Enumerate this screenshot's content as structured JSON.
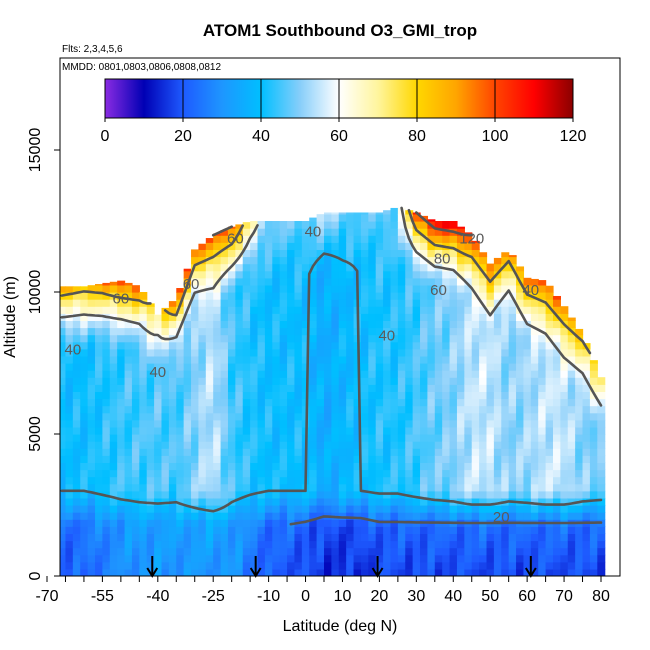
{
  "chart_data": {
    "type": "heatmap",
    "title": "ATOM1 Southbound O3_GMI_trop",
    "subtitle_flights": "Flts: 2,3,4,5,6",
    "subtitle_dates": "MMDD: 0801,0803,0806,0808,0812",
    "xlabel": "Latitude (deg N)",
    "ylabel": "Altitude (m)",
    "xlim": [
      -70,
      80
    ],
    "ylim": [
      0,
      17500
    ],
    "x_ticks": [
      -70,
      -55,
      -40,
      -25,
      -10,
      0,
      10,
      20,
      30,
      40,
      50,
      60,
      70,
      80
    ],
    "y_ticks": [
      0,
      5000,
      10000,
      15000
    ],
    "colorbar": {
      "min": 0,
      "max": 120,
      "ticks": [
        0,
        20,
        40,
        60,
        80,
        100,
        120
      ],
      "colors": [
        "#8a2be2",
        "#0000b4",
        "#1e5aff",
        "#1e96ff",
        "#00bfff",
        "#87cefa",
        "#ffffff",
        "#fff59d",
        "#ffd700",
        "#ffa500",
        "#ff4500",
        "#ff0000",
        "#8b0000"
      ]
    },
    "contour_levels": [
      20,
      40,
      60,
      80,
      100,
      120
    ],
    "contour_labels": [
      {
        "text": "20",
        "lat": 53,
        "alt": 1900
      },
      {
        "text": "40",
        "lat": 2,
        "alt": 11950
      },
      {
        "text": "40",
        "lat": 22,
        "alt": 8300
      },
      {
        "text": "40",
        "lat": -40,
        "alt": 7000
      },
      {
        "text": "40",
        "lat": -63,
        "alt": 7800
      },
      {
        "text": "40",
        "lat": 61,
        "alt": 9900
      },
      {
        "text": "60",
        "lat": -50,
        "alt": 9600
      },
      {
        "text": "60",
        "lat": 36,
        "alt": 9900
      },
      {
        "text": "60",
        "lat": -31,
        "alt": 10100
      },
      {
        "text": "60",
        "lat": -19,
        "alt": 11700
      },
      {
        "text": "80",
        "lat": 37,
        "alt": 11000
      },
      {
        "text": "120",
        "lat": 45,
        "alt": 11700
      }
    ],
    "flight_markers_lat": [
      -41.5,
      -13.5,
      19.5,
      61
    ],
    "columns": [
      {
        "lat": -66,
        "top": 10200,
        "surf": 20,
        "mid": 40,
        "upper": 90
      },
      {
        "lat": -60,
        "top": 10200,
        "surf": 22,
        "mid": 40,
        "upper": 85
      },
      {
        "lat": -55,
        "top": 10300,
        "surf": 25,
        "mid": 42,
        "upper": 90
      },
      {
        "lat": -50,
        "top": 10400,
        "surf": 28,
        "mid": 44,
        "upper": 100
      },
      {
        "lat": -45,
        "top": 10200,
        "surf": 30,
        "mid": 45,
        "upper": 95
      },
      {
        "lat": -40,
        "top": 9200,
        "surf": 30,
        "mid": 46,
        "upper": 70
      },
      {
        "lat": -35,
        "top": 9800,
        "surf": 30,
        "mid": 45,
        "upper": 100
      },
      {
        "lat": -30,
        "top": 11500,
        "surf": 30,
        "mid": 50,
        "upper": 95
      },
      {
        "lat": -25,
        "top": 12000,
        "surf": 30,
        "mid": 55,
        "upper": 100
      },
      {
        "lat": -20,
        "top": 12300,
        "surf": 30,
        "mid": 45,
        "upper": 100
      },
      {
        "lat": -15,
        "top": 12500,
        "surf": 25,
        "mid": 42,
        "upper": 70
      },
      {
        "lat": -10,
        "top": 12500,
        "surf": 20,
        "mid": 40,
        "upper": 50
      },
      {
        "lat": -5,
        "top": 12500,
        "surf": 20,
        "mid": 40,
        "upper": 48
      },
      {
        "lat": 0,
        "top": 12500,
        "surf": 18,
        "mid": 40,
        "upper": 48
      },
      {
        "lat": 5,
        "top": 12800,
        "surf": 15,
        "mid": 35,
        "upper": 55
      },
      {
        "lat": 10,
        "top": 12800,
        "surf": 15,
        "mid": 38,
        "upper": 50
      },
      {
        "lat": 15,
        "top": 12800,
        "surf": 15,
        "mid": 40,
        "upper": 45
      },
      {
        "lat": 20,
        "top": 12800,
        "surf": 18,
        "mid": 42,
        "upper": 48
      },
      {
        "lat": 25,
        "top": 13000,
        "surf": 18,
        "mid": 42,
        "upper": 50
      },
      {
        "lat": 30,
        "top": 12800,
        "surf": 18,
        "mid": 45,
        "upper": 100
      },
      {
        "lat": 35,
        "top": 12500,
        "surf": 18,
        "mid": 48,
        "upper": 110
      },
      {
        "lat": 40,
        "top": 12500,
        "surf": 18,
        "mid": 50,
        "upper": 115
      },
      {
        "lat": 45,
        "top": 12000,
        "surf": 18,
        "mid": 55,
        "upper": 100
      },
      {
        "lat": 50,
        "top": 11000,
        "surf": 18,
        "mid": 55,
        "upper": 95
      },
      {
        "lat": 55,
        "top": 11500,
        "surf": 18,
        "mid": 50,
        "upper": 90
      },
      {
        "lat": 60,
        "top": 10500,
        "surf": 18,
        "mid": 52,
        "upper": 95
      },
      {
        "lat": 65,
        "top": 10400,
        "surf": 18,
        "mid": 55,
        "upper": 100
      },
      {
        "lat": 70,
        "top": 9500,
        "surf": 18,
        "mid": 55,
        "upper": 95
      },
      {
        "lat": 75,
        "top": 8500,
        "surf": 18,
        "mid": 50,
        "upper": 85
      },
      {
        "lat": 80,
        "top": 7000,
        "surf": 18,
        "mid": 48,
        "upper": 75
      }
    ]
  }
}
